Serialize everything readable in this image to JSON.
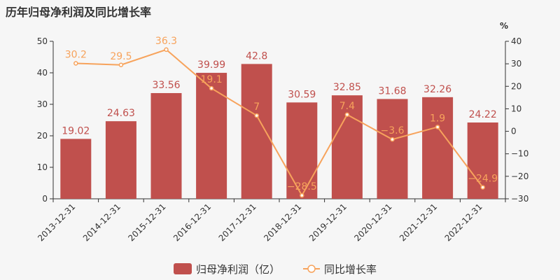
{
  "chart_data": {
    "type": "bar",
    "title": "历年归母净利润及同比增长率",
    "categories": [
      "2013-12-31",
      "2014-12-31",
      "2015-12-31",
      "2016-12-31",
      "2017-12-31",
      "2018-12-31",
      "2019-12-31",
      "2020-12-31",
      "2021-12-31",
      "2022-12-31"
    ],
    "series": [
      {
        "name": "归母净利润（亿）",
        "type": "bar",
        "axis": "left",
        "values": [
          19.02,
          24.63,
          33.56,
          39.99,
          42.8,
          30.59,
          32.85,
          31.68,
          32.26,
          24.22
        ],
        "labels": [
          "19.02",
          "24.63",
          "33.56",
          "39.99",
          "42.8",
          "30.59",
          "32.85",
          "31.68",
          "32.26",
          "24.22"
        ]
      },
      {
        "name": "同比增长率",
        "type": "line",
        "axis": "right",
        "values": [
          30.2,
          29.5,
          36.3,
          19.1,
          7,
          -28.5,
          7.4,
          -3.6,
          1.9,
          -24.9
        ],
        "labels": [
          "30.2",
          "29.5",
          "36.3",
          "19.1",
          "7",
          "−28.5",
          "7.4",
          "−3.6",
          "1.9",
          "−24.9"
        ]
      }
    ],
    "y_left": {
      "min": 0,
      "max": 50,
      "ticks": [
        "0",
        "10",
        "20",
        "30",
        "40",
        "50"
      ]
    },
    "y_right": {
      "min": -30,
      "max": 40,
      "unit": "%",
      "ticks": [
        "−30",
        "−20",
        "−10",
        "0",
        "10",
        "20",
        "30",
        "40"
      ]
    },
    "legend_position": "bottom-center",
    "colors": {
      "bar": "#c0504d",
      "line": "#f7a35c",
      "axis": "#333333"
    }
  }
}
